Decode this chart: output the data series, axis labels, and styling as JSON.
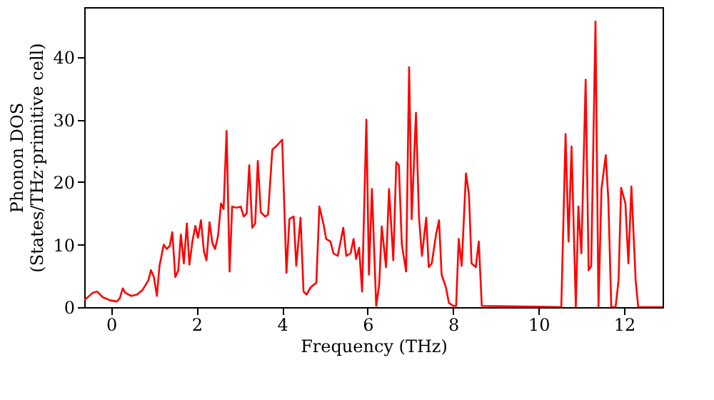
{
  "chart_data": {
    "type": "line",
    "xlabel": "Frequency (THz)",
    "ylabel": "Phonon DOS\n(States/THz·primitive cell)",
    "xlim": [
      -0.63,
      12.9
    ],
    "ylim": [
      0,
      48
    ],
    "xticks": [
      0,
      2,
      4,
      6,
      8,
      10,
      12
    ],
    "yticks": [
      0,
      10,
      20,
      30,
      40
    ],
    "grid": false,
    "line_style": "solid",
    "series": [
      {
        "color": "#ff0000",
        "x": [
          -0.63,
          -0.43,
          -0.33,
          -0.2,
          -0.03,
          0.13,
          0.2,
          0.27,
          0.33,
          0.47,
          0.6,
          0.73,
          0.87,
          0.93,
          1.0,
          1.07,
          1.13,
          1.23,
          1.3,
          1.37,
          1.43,
          1.5,
          1.57,
          1.63,
          1.7,
          1.77,
          1.83,
          1.9,
          1.97,
          2.03,
          2.1,
          2.17,
          2.23,
          2.3,
          2.37,
          2.43,
          2.5,
          2.57,
          2.63,
          2.7,
          2.77,
          2.83,
          2.93,
          3.03,
          3.1,
          3.17,
          3.23,
          3.3,
          3.37,
          3.43,
          3.5,
          3.6,
          3.67,
          3.77,
          3.87,
          4.0,
          4.1,
          4.17,
          4.27,
          4.33,
          4.43,
          4.5,
          4.57,
          4.67,
          4.8,
          4.87,
          4.97,
          5.03,
          5.13,
          5.2,
          5.3,
          5.43,
          5.5,
          5.6,
          5.67,
          5.73,
          5.8,
          5.87,
          5.97,
          6.03,
          6.1,
          6.2,
          6.27,
          6.33,
          6.43,
          6.5,
          6.6,
          6.67,
          6.73,
          6.8,
          6.9,
          6.97,
          7.03,
          7.13,
          7.2,
          7.27,
          7.37,
          7.43,
          7.5,
          7.6,
          7.67,
          7.73,
          7.83,
          7.9,
          8.0,
          8.07,
          8.13,
          8.2,
          8.3,
          8.37,
          8.43,
          8.53,
          8.6,
          8.67,
          10.53,
          10.63,
          10.7,
          10.77,
          10.87,
          10.93,
          11.0,
          11.1,
          11.17,
          11.23,
          11.33,
          11.4,
          11.47,
          11.57,
          11.63,
          11.7,
          11.8,
          11.87,
          11.93,
          12.03,
          12.1,
          12.17,
          12.27,
          12.33,
          12.9
        ],
        "values": [
          1.1,
          2.3,
          2.5,
          1.6,
          1.1,
          0.9,
          1.4,
          3.0,
          2.3,
          1.8,
          2.0,
          2.7,
          4.3,
          5.9,
          4.8,
          1.8,
          6.6,
          10.0,
          9.3,
          9.8,
          12.0,
          4.8,
          5.9,
          11.6,
          7.0,
          13.4,
          6.8,
          10.5,
          13.0,
          11.1,
          13.9,
          8.9,
          7.5,
          13.6,
          10.2,
          9.3,
          11.4,
          16.6,
          15.7,
          28.2,
          5.7,
          16.1,
          15.9,
          16.1,
          14.5,
          15.0,
          22.7,
          12.7,
          13.4,
          23.4,
          15.2,
          14.5,
          14.8,
          25.2,
          25.8,
          26.8,
          5.5,
          14.1,
          14.5,
          6.6,
          14.3,
          2.5,
          2.0,
          3.2,
          3.9,
          16.1,
          13.2,
          10.9,
          10.5,
          8.6,
          8.2,
          12.7,
          8.2,
          8.6,
          10.9,
          7.7,
          9.5,
          2.5,
          30.0,
          5.2,
          18.9,
          0.2,
          3.6,
          12.9,
          6.4,
          18.9,
          7.5,
          23.2,
          22.7,
          10.0,
          5.7,
          38.4,
          14.1,
          31.1,
          14.5,
          8.2,
          14.3,
          6.4,
          7.0,
          11.6,
          13.9,
          5.2,
          3.2,
          0.7,
          0.2,
          0.2,
          10.9,
          6.6,
          21.4,
          18.0,
          7.0,
          6.4,
          10.5,
          0.2,
          0.0,
          27.7,
          10.5,
          25.7,
          0.0,
          16.1,
          8.6,
          36.4,
          5.9,
          6.6,
          45.7,
          0.0,
          18.9,
          24.3,
          17.3,
          0.0,
          0.0,
          4.3,
          19.1,
          16.6,
          7.0,
          19.3,
          4.3,
          0.0,
          0.0
        ]
      }
    ]
  }
}
